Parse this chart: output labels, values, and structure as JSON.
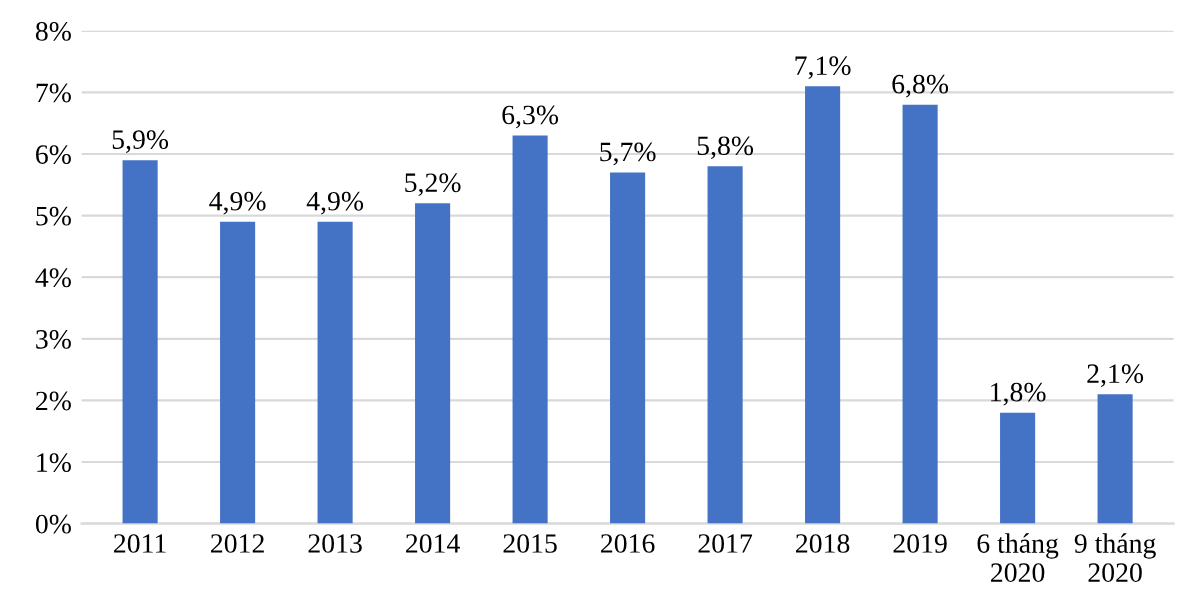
{
  "chart_data": {
    "type": "bar",
    "categories": [
      "2011",
      "2012",
      "2013",
      "2014",
      "2015",
      "2016",
      "2017",
      "2018",
      "2019",
      "6 tháng\n2020",
      "9 tháng\n2020"
    ],
    "values": [
      5.9,
      4.9,
      4.9,
      5.2,
      6.3,
      5.7,
      5.8,
      7.1,
      6.8,
      1.8,
      2.1
    ],
    "value_labels": [
      "5,9%",
      "4,9%",
      "4,9%",
      "5,2%",
      "6,3%",
      "5,7%",
      "5,8%",
      "7,1%",
      "6,8%",
      "1,8%",
      "2,1%"
    ],
    "color": "#4472c4",
    "ylim": [
      0,
      8
    ],
    "yticks": [
      {
        "value": 0,
        "label": "0%"
      },
      {
        "value": 1,
        "label": "1%"
      },
      {
        "value": 2,
        "label": "2%"
      },
      {
        "value": 3,
        "label": "3%"
      },
      {
        "value": 4,
        "label": "4%"
      },
      {
        "value": 5,
        "label": "5%"
      },
      {
        "value": 6,
        "label": "6%"
      },
      {
        "value": 7,
        "label": "7%"
      },
      {
        "value": 8,
        "label": "8%"
      }
    ],
    "grid": "y"
  }
}
